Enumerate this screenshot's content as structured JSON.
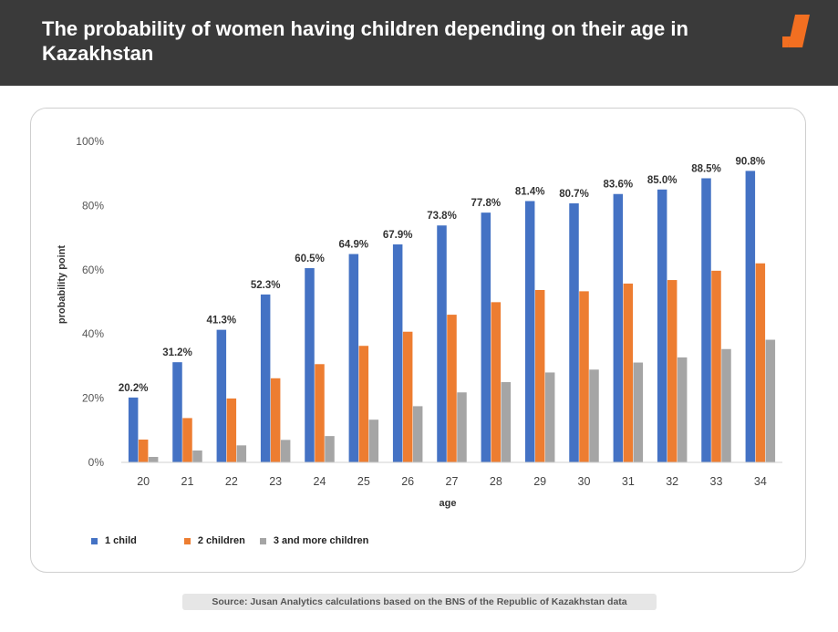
{
  "header": {
    "title": "The probability of women having children depending on their age in Kazakhstan"
  },
  "source": "Source: Jusan Analytics calculations based on the BNS of the Republic of Kazakhstan data",
  "colors": {
    "header_bg": "#3a3a3a",
    "logo": "#f26f21",
    "series_1": "#4472c4",
    "series_2": "#ed7d31",
    "series_3": "#a5a5a5"
  },
  "chart_data": {
    "type": "bar",
    "title": "",
    "xlabel": "age",
    "ylabel": "probability point",
    "ylim": [
      0,
      100
    ],
    "yticks": [
      "0%",
      "20%",
      "40%",
      "60%",
      "80%",
      "100%"
    ],
    "grid": false,
    "legend_position": "bottom-left",
    "categories": [
      "20",
      "21",
      "22",
      "23",
      "24",
      "25",
      "26",
      "27",
      "28",
      "29",
      "30",
      "31",
      "32",
      "33",
      "34"
    ],
    "series": [
      {
        "name": "1 child",
        "color": "#4472c4",
        "values": [
          20.2,
          31.2,
          41.3,
          52.3,
          60.5,
          64.9,
          67.9,
          73.8,
          77.8,
          81.4,
          80.7,
          83.6,
          85.0,
          88.5,
          90.8
        ],
        "labels": [
          "20.2%",
          "31.2%",
          "41.3%",
          "52.3%",
          "60.5%",
          "64.9%",
          "67.9%",
          "73.8%",
          "77.8%",
          "81.4%",
          "80.7%",
          "83.6%",
          "85.0%",
          "88.5%",
          "90.8%"
        ]
      },
      {
        "name": "2 children",
        "color": "#ed7d31",
        "values": [
          7.1,
          13.8,
          19.9,
          26.2,
          30.6,
          36.3,
          40.7,
          46.0,
          49.9,
          53.7,
          53.3,
          55.7,
          56.8,
          59.7,
          62.0
        ]
      },
      {
        "name": "3 and more children",
        "color": "#a5a5a5",
        "values": [
          1.7,
          3.7,
          5.3,
          7.0,
          8.2,
          13.3,
          17.5,
          21.8,
          25.0,
          28.0,
          28.9,
          31.1,
          32.7,
          35.3,
          38.2
        ]
      }
    ]
  }
}
